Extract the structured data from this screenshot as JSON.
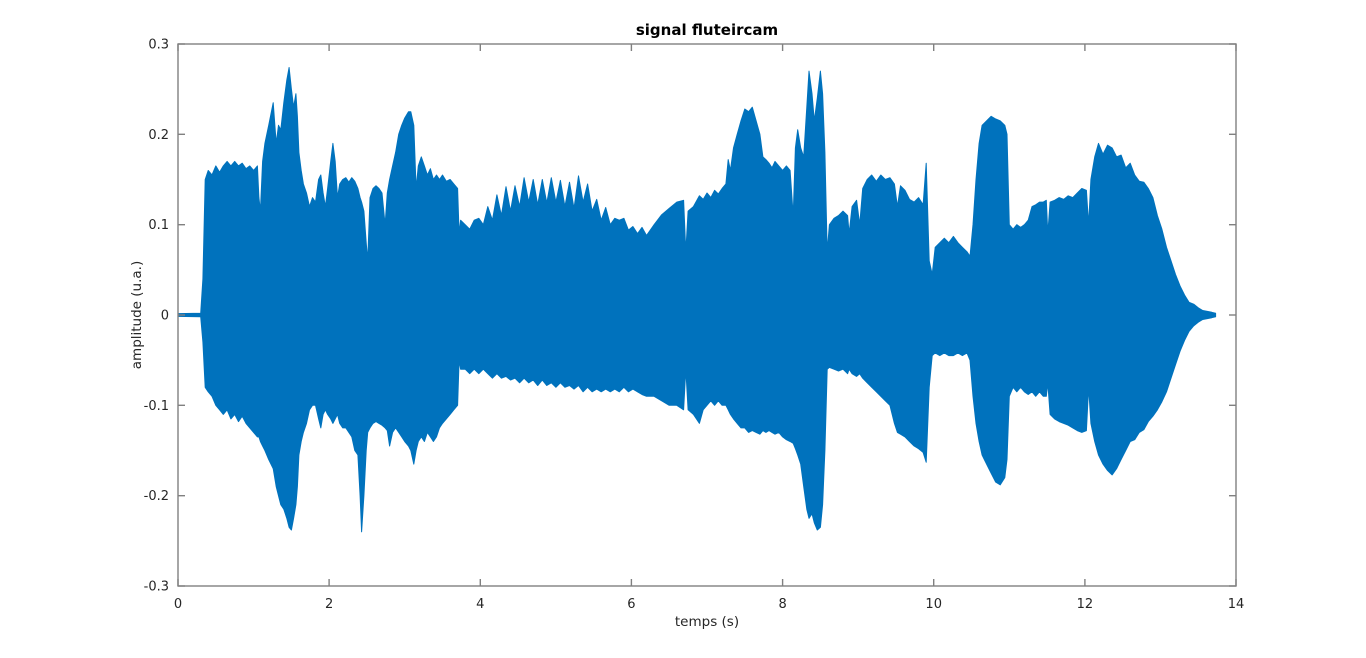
{
  "chart_data": {
    "type": "area",
    "title": "signal fluteircam",
    "xlabel": "temps (s)",
    "ylabel": "amplitude (u.a.)",
    "xlim": [
      0,
      14
    ],
    "ylim": [
      -0.3,
      0.3
    ],
    "grid": false,
    "x_ticks": [
      0,
      2,
      4,
      6,
      8,
      10,
      12,
      14
    ],
    "x_tick_labels": [
      "0",
      "2",
      "4",
      "6",
      "8",
      "10",
      "12",
      "14"
    ],
    "y_ticks": [
      0.3,
      0.2,
      0.1,
      0,
      -0.1,
      -0.2,
      -0.3
    ],
    "y_tick_labels": [
      "0.3",
      "0.2",
      "0.1",
      "0",
      "-0.1",
      "-0.2",
      "-0.3"
    ],
    "colors": {
      "series": "#0072BD",
      "axis": "#808080",
      "tick_text": "#262626",
      "title_text": "#000000",
      "background": "#ffffff"
    },
    "series_name": "signal fluteircam waveform envelope",
    "envelope_points_format": "[time_s, upper_amplitude, lower_amplitude]",
    "envelope": [
      [
        0.0,
        0.0015,
        -0.0015
      ],
      [
        0.3,
        0.002,
        -0.002
      ],
      [
        0.33,
        0.04,
        -0.03
      ],
      [
        0.36,
        0.15,
        -0.08
      ],
      [
        0.4,
        0.16,
        -0.085
      ],
      [
        0.45,
        0.155,
        -0.09
      ],
      [
        0.5,
        0.165,
        -0.1
      ],
      [
        0.55,
        0.158,
        -0.105
      ],
      [
        0.6,
        0.165,
        -0.11
      ],
      [
        0.65,
        0.17,
        -0.105
      ],
      [
        0.7,
        0.165,
        -0.115
      ],
      [
        0.75,
        0.17,
        -0.11
      ],
      [
        0.8,
        0.165,
        -0.118
      ],
      [
        0.85,
        0.168,
        -0.112
      ],
      [
        0.9,
        0.162,
        -0.12
      ],
      [
        0.95,
        0.165,
        -0.125
      ],
      [
        1.0,
        0.16,
        -0.13
      ],
      [
        1.05,
        0.165,
        -0.135
      ],
      [
        1.07,
        0.13,
        -0.135
      ],
      [
        1.09,
        0.115,
        -0.14
      ],
      [
        1.12,
        0.17,
        -0.145
      ],
      [
        1.15,
        0.19,
        -0.15
      ],
      [
        1.2,
        0.21,
        -0.16
      ],
      [
        1.26,
        0.235,
        -0.17
      ],
      [
        1.3,
        0.19,
        -0.19
      ],
      [
        1.33,
        0.21,
        -0.2
      ],
      [
        1.36,
        0.205,
        -0.21
      ],
      [
        1.4,
        0.235,
        -0.215
      ],
      [
        1.44,
        0.26,
        -0.225
      ],
      [
        1.47,
        0.274,
        -0.235
      ],
      [
        1.5,
        0.25,
        -0.238
      ],
      [
        1.53,
        0.23,
        -0.225
      ],
      [
        1.56,
        0.245,
        -0.21
      ],
      [
        1.58,
        0.22,
        -0.19
      ],
      [
        1.6,
        0.18,
        -0.155
      ],
      [
        1.63,
        0.16,
        -0.14
      ],
      [
        1.66,
        0.145,
        -0.13
      ],
      [
        1.7,
        0.135,
        -0.12
      ],
      [
        1.74,
        0.12,
        -0.105
      ],
      [
        1.78,
        0.13,
        -0.1
      ],
      [
        1.82,
        0.125,
        -0.1
      ],
      [
        1.86,
        0.15,
        -0.115
      ],
      [
        1.89,
        0.155,
        -0.125
      ],
      [
        1.92,
        0.135,
        -0.11
      ],
      [
        1.95,
        0.12,
        -0.105
      ],
      [
        1.98,
        0.14,
        -0.11
      ],
      [
        2.02,
        0.17,
        -0.115
      ],
      [
        2.05,
        0.19,
        -0.12
      ],
      [
        2.08,
        0.17,
        -0.115
      ],
      [
        2.11,
        0.13,
        -0.11
      ],
      [
        2.14,
        0.145,
        -0.12
      ],
      [
        2.18,
        0.15,
        -0.125
      ],
      [
        2.22,
        0.152,
        -0.125
      ],
      [
        2.26,
        0.147,
        -0.13
      ],
      [
        2.3,
        0.152,
        -0.135
      ],
      [
        2.34,
        0.148,
        -0.15
      ],
      [
        2.38,
        0.14,
        -0.155
      ],
      [
        2.41,
        0.13,
        -0.2
      ],
      [
        2.43,
        0.125,
        -0.24
      ],
      [
        2.46,
        0.115,
        -0.2
      ],
      [
        2.49,
        0.08,
        -0.15
      ],
      [
        2.51,
        0.06,
        -0.13
      ],
      [
        2.54,
        0.13,
        -0.125
      ],
      [
        2.58,
        0.14,
        -0.12
      ],
      [
        2.62,
        0.143,
        -0.118
      ],
      [
        2.66,
        0.14,
        -0.12
      ],
      [
        2.7,
        0.135,
        -0.122
      ],
      [
        2.74,
        0.1,
        -0.125
      ],
      [
        2.77,
        0.135,
        -0.128
      ],
      [
        2.8,
        0.15,
        -0.145
      ],
      [
        2.84,
        0.165,
        -0.13
      ],
      [
        2.88,
        0.18,
        -0.125
      ],
      [
        2.92,
        0.2,
        -0.13
      ],
      [
        2.96,
        0.21,
        -0.135
      ],
      [
        3.0,
        0.218,
        -0.14
      ],
      [
        3.05,
        0.225,
        -0.145
      ],
      [
        3.08,
        0.225,
        -0.15
      ],
      [
        3.12,
        0.21,
        -0.165
      ],
      [
        3.15,
        0.14,
        -0.15
      ],
      [
        3.18,
        0.165,
        -0.14
      ],
      [
        3.22,
        0.175,
        -0.135
      ],
      [
        3.26,
        0.165,
        -0.14
      ],
      [
        3.3,
        0.155,
        -0.13
      ],
      [
        3.34,
        0.162,
        -0.135
      ],
      [
        3.38,
        0.15,
        -0.14
      ],
      [
        3.42,
        0.155,
        -0.135
      ],
      [
        3.46,
        0.15,
        -0.125
      ],
      [
        3.5,
        0.155,
        -0.12
      ],
      [
        3.55,
        0.148,
        -0.115
      ],
      [
        3.6,
        0.15,
        -0.11
      ],
      [
        3.65,
        0.145,
        -0.105
      ],
      [
        3.7,
        0.14,
        -0.1
      ],
      [
        3.72,
        0.09,
        -0.05
      ],
      [
        3.74,
        0.105,
        -0.06
      ],
      [
        3.8,
        0.1,
        -0.06
      ],
      [
        3.86,
        0.095,
        -0.065
      ],
      [
        3.92,
        0.105,
        -0.06
      ],
      [
        3.98,
        0.107,
        -0.065
      ],
      [
        4.04,
        0.1,
        -0.06
      ],
      [
        4.1,
        0.12,
        -0.065
      ],
      [
        4.16,
        0.105,
        -0.07
      ],
      [
        4.22,
        0.133,
        -0.065
      ],
      [
        4.28,
        0.11,
        -0.07
      ],
      [
        4.34,
        0.142,
        -0.068
      ],
      [
        4.4,
        0.115,
        -0.072
      ],
      [
        4.46,
        0.143,
        -0.07
      ],
      [
        4.52,
        0.12,
        -0.075
      ],
      [
        4.58,
        0.152,
        -0.07
      ],
      [
        4.64,
        0.125,
        -0.075
      ],
      [
        4.7,
        0.15,
        -0.072
      ],
      [
        4.76,
        0.122,
        -0.078
      ],
      [
        4.82,
        0.15,
        -0.072
      ],
      [
        4.88,
        0.124,
        -0.078
      ],
      [
        4.94,
        0.152,
        -0.075
      ],
      [
        5.0,
        0.125,
        -0.08
      ],
      [
        5.06,
        0.149,
        -0.075
      ],
      [
        5.12,
        0.12,
        -0.08
      ],
      [
        5.18,
        0.147,
        -0.078
      ],
      [
        5.24,
        0.118,
        -0.082
      ],
      [
        5.3,
        0.154,
        -0.078
      ],
      [
        5.36,
        0.125,
        -0.085
      ],
      [
        5.42,
        0.145,
        -0.08
      ],
      [
        5.48,
        0.115,
        -0.085
      ],
      [
        5.54,
        0.128,
        -0.082
      ],
      [
        5.6,
        0.105,
        -0.085
      ],
      [
        5.66,
        0.119,
        -0.082
      ],
      [
        5.72,
        0.1,
        -0.085
      ],
      [
        5.78,
        0.107,
        -0.082
      ],
      [
        5.84,
        0.105,
        -0.085
      ],
      [
        5.9,
        0.107,
        -0.08
      ],
      [
        5.96,
        0.094,
        -0.085
      ],
      [
        6.02,
        0.098,
        -0.082
      ],
      [
        6.08,
        0.09,
        -0.085
      ],
      [
        6.14,
        0.097,
        -0.088
      ],
      [
        6.2,
        0.088,
        -0.09
      ],
      [
        6.3,
        0.1,
        -0.09
      ],
      [
        6.4,
        0.111,
        -0.095
      ],
      [
        6.5,
        0.118,
        -0.1
      ],
      [
        6.6,
        0.125,
        -0.1
      ],
      [
        6.69,
        0.127,
        -0.105
      ],
      [
        6.72,
        0.07,
        -0.06
      ],
      [
        6.75,
        0.115,
        -0.105
      ],
      [
        6.82,
        0.12,
        -0.11
      ],
      [
        6.9,
        0.132,
        -0.12
      ],
      [
        6.95,
        0.128,
        -0.105
      ],
      [
        7.0,
        0.135,
        -0.1
      ],
      [
        7.05,
        0.13,
        -0.095
      ],
      [
        7.1,
        0.138,
        -0.1
      ],
      [
        7.15,
        0.134,
        -0.095
      ],
      [
        7.2,
        0.14,
        -0.1
      ],
      [
        7.25,
        0.145,
        -0.1
      ],
      [
        7.28,
        0.172,
        -0.105
      ],
      [
        7.31,
        0.16,
        -0.11
      ],
      [
        7.35,
        0.185,
        -0.115
      ],
      [
        7.4,
        0.2,
        -0.12
      ],
      [
        7.45,
        0.215,
        -0.125
      ],
      [
        7.5,
        0.228,
        -0.125
      ],
      [
        7.55,
        0.225,
        -0.13
      ],
      [
        7.6,
        0.23,
        -0.128
      ],
      [
        7.65,
        0.215,
        -0.13
      ],
      [
        7.7,
        0.2,
        -0.132
      ],
      [
        7.74,
        0.175,
        -0.128
      ],
      [
        7.78,
        0.172,
        -0.13
      ],
      [
        7.82,
        0.168,
        -0.128
      ],
      [
        7.86,
        0.163,
        -0.13
      ],
      [
        7.9,
        0.17,
        -0.132
      ],
      [
        7.95,
        0.165,
        -0.13
      ],
      [
        8.0,
        0.16,
        -0.135
      ],
      [
        8.05,
        0.165,
        -0.138
      ],
      [
        8.1,
        0.16,
        -0.14
      ],
      [
        8.14,
        0.11,
        -0.142
      ],
      [
        8.17,
        0.185,
        -0.148
      ],
      [
        8.2,
        0.205,
        -0.155
      ],
      [
        8.24,
        0.185,
        -0.165
      ],
      [
        8.28,
        0.175,
        -0.19
      ],
      [
        8.32,
        0.23,
        -0.215
      ],
      [
        8.35,
        0.27,
        -0.225
      ],
      [
        8.39,
        0.245,
        -0.22
      ],
      [
        8.42,
        0.215,
        -0.23
      ],
      [
        8.46,
        0.24,
        -0.238
      ],
      [
        8.5,
        0.27,
        -0.235
      ],
      [
        8.53,
        0.245,
        -0.21
      ],
      [
        8.56,
        0.18,
        -0.15
      ],
      [
        8.59,
        0.07,
        -0.06
      ],
      [
        8.62,
        0.1,
        -0.058
      ],
      [
        8.68,
        0.107,
        -0.06
      ],
      [
        8.74,
        0.11,
        -0.062
      ],
      [
        8.8,
        0.115,
        -0.06
      ],
      [
        8.86,
        0.11,
        -0.065
      ],
      [
        8.88,
        0.09,
        -0.06
      ],
      [
        8.92,
        0.12,
        -0.065
      ],
      [
        8.98,
        0.127,
        -0.068
      ],
      [
        9.02,
        0.1,
        -0.065
      ],
      [
        9.06,
        0.14,
        -0.07
      ],
      [
        9.12,
        0.15,
        -0.075
      ],
      [
        9.18,
        0.155,
        -0.08
      ],
      [
        9.24,
        0.148,
        -0.085
      ],
      [
        9.3,
        0.155,
        -0.09
      ],
      [
        9.36,
        0.15,
        -0.095
      ],
      [
        9.42,
        0.152,
        -0.1
      ],
      [
        9.48,
        0.145,
        -0.12
      ],
      [
        9.52,
        0.12,
        -0.13
      ],
      [
        9.56,
        0.143,
        -0.132
      ],
      [
        9.62,
        0.138,
        -0.135
      ],
      [
        9.68,
        0.128,
        -0.14
      ],
      [
        9.74,
        0.125,
        -0.145
      ],
      [
        9.8,
        0.13,
        -0.148
      ],
      [
        9.86,
        0.122,
        -0.152
      ],
      [
        9.9,
        0.168,
        -0.163
      ],
      [
        9.94,
        0.06,
        -0.08
      ],
      [
        9.98,
        0.045,
        -0.045
      ],
      [
        10.02,
        0.075,
        -0.042
      ],
      [
        10.08,
        0.08,
        -0.045
      ],
      [
        10.14,
        0.085,
        -0.042
      ],
      [
        10.2,
        0.08,
        -0.045
      ],
      [
        10.26,
        0.087,
        -0.045
      ],
      [
        10.32,
        0.08,
        -0.042
      ],
      [
        10.38,
        0.075,
        -0.045
      ],
      [
        10.44,
        0.07,
        -0.042
      ],
      [
        10.48,
        0.065,
        -0.05
      ],
      [
        10.52,
        0.1,
        -0.09
      ],
      [
        10.56,
        0.15,
        -0.12
      ],
      [
        10.6,
        0.19,
        -0.14
      ],
      [
        10.64,
        0.21,
        -0.155
      ],
      [
        10.7,
        0.215,
        -0.165
      ],
      [
        10.76,
        0.22,
        -0.175
      ],
      [
        10.82,
        0.217,
        -0.185
      ],
      [
        10.88,
        0.215,
        -0.188
      ],
      [
        10.94,
        0.21,
        -0.18
      ],
      [
        10.97,
        0.2,
        -0.16
      ],
      [
        11.0,
        0.1,
        -0.09
      ],
      [
        11.05,
        0.095,
        -0.08
      ],
      [
        11.1,
        0.1,
        -0.085
      ],
      [
        11.15,
        0.097,
        -0.08
      ],
      [
        11.2,
        0.1,
        -0.085
      ],
      [
        11.25,
        0.105,
        -0.088
      ],
      [
        11.3,
        0.12,
        -0.085
      ],
      [
        11.35,
        0.122,
        -0.09
      ],
      [
        11.4,
        0.125,
        -0.085
      ],
      [
        11.45,
        0.125,
        -0.09
      ],
      [
        11.49,
        0.127,
        -0.09
      ],
      [
        11.51,
        0.09,
        -0.075
      ],
      [
        11.54,
        0.125,
        -0.11
      ],
      [
        11.6,
        0.127,
        -0.115
      ],
      [
        11.66,
        0.13,
        -0.118
      ],
      [
        11.72,
        0.128,
        -0.12
      ],
      [
        11.78,
        0.132,
        -0.122
      ],
      [
        11.84,
        0.13,
        -0.125
      ],
      [
        11.9,
        0.135,
        -0.128
      ],
      [
        11.96,
        0.14,
        -0.13
      ],
      [
        12.02,
        0.138,
        -0.128
      ],
      [
        12.05,
        0.1,
        -0.08
      ],
      [
        12.08,
        0.15,
        -0.12
      ],
      [
        12.13,
        0.175,
        -0.14
      ],
      [
        12.18,
        0.19,
        -0.155
      ],
      [
        12.24,
        0.178,
        -0.165
      ],
      [
        12.3,
        0.188,
        -0.172
      ],
      [
        12.36,
        0.185,
        -0.177
      ],
      [
        12.42,
        0.175,
        -0.17
      ],
      [
        12.48,
        0.177,
        -0.16
      ],
      [
        12.54,
        0.163,
        -0.15
      ],
      [
        12.6,
        0.168,
        -0.14
      ],
      [
        12.66,
        0.155,
        -0.138
      ],
      [
        12.72,
        0.148,
        -0.13
      ],
      [
        12.78,
        0.147,
        -0.127
      ],
      [
        12.84,
        0.14,
        -0.118
      ],
      [
        12.9,
        0.13,
        -0.112
      ],
      [
        12.96,
        0.11,
        -0.105
      ],
      [
        13.02,
        0.095,
        -0.096
      ],
      [
        13.08,
        0.075,
        -0.085
      ],
      [
        13.14,
        0.06,
        -0.07
      ],
      [
        13.2,
        0.045,
        -0.055
      ],
      [
        13.26,
        0.032,
        -0.04
      ],
      [
        13.32,
        0.022,
        -0.028
      ],
      [
        13.38,
        0.014,
        -0.018
      ],
      [
        13.44,
        0.012,
        -0.012
      ],
      [
        13.5,
        0.008,
        -0.008
      ],
      [
        13.56,
        0.005,
        -0.005
      ],
      [
        13.62,
        0.004,
        -0.004
      ],
      [
        13.68,
        0.003,
        -0.003
      ],
      [
        13.73,
        0.002,
        -0.002
      ]
    ]
  }
}
